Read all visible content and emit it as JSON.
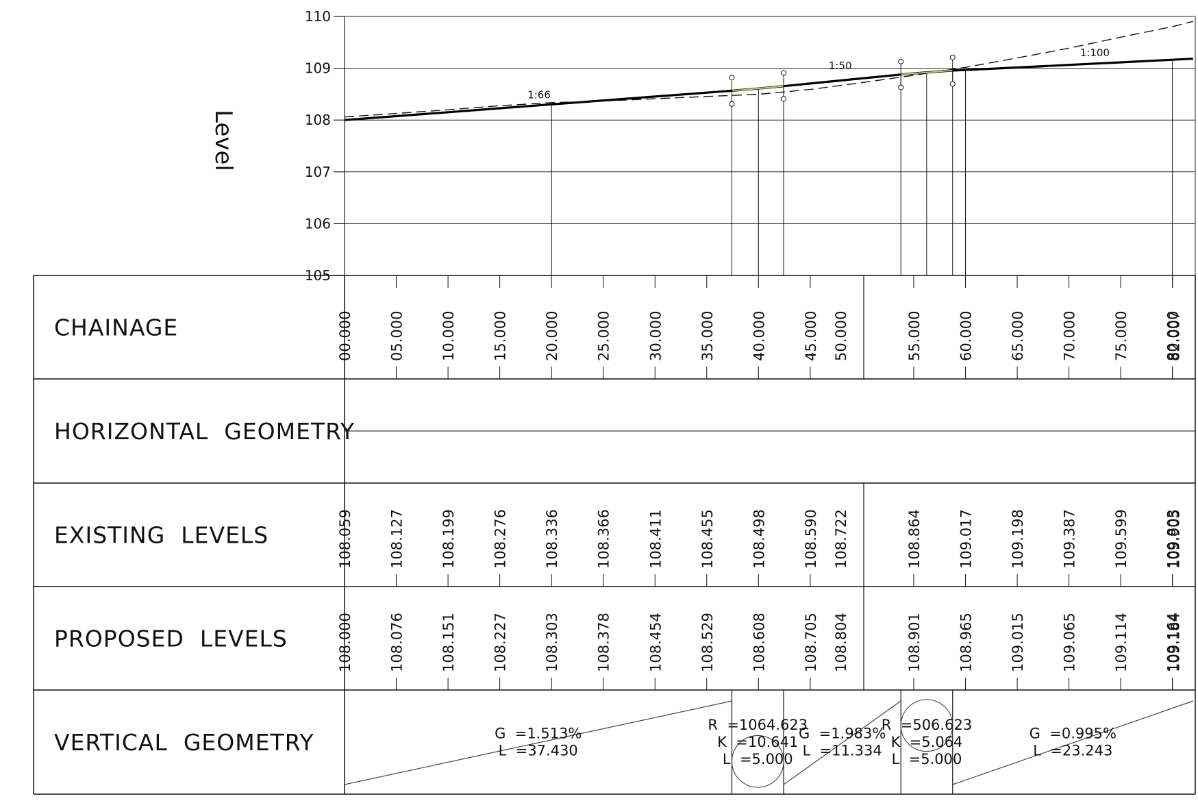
{
  "chart_data": {
    "type": "line",
    "ylabel": "Level",
    "ylim": [
      105,
      110
    ],
    "y_ticks": [
      "105",
      "106",
      "107",
      "108",
      "109",
      "110"
    ],
    "xlim": [
      0,
      80
    ],
    "grid": true,
    "series": [
      {
        "style": "solid-bold",
        "points": [
          [
            0,
            108.0
          ],
          [
            5,
            108.076
          ],
          [
            10,
            108.151
          ],
          [
            15,
            108.227
          ],
          [
            20,
            108.303
          ],
          [
            25,
            108.378
          ],
          [
            30,
            108.454
          ],
          [
            35,
            108.529
          ],
          [
            37.43,
            108.566
          ],
          [
            40,
            108.608
          ],
          [
            42.43,
            108.655
          ],
          [
            45,
            108.705
          ],
          [
            50,
            108.804
          ],
          [
            53.76,
            108.878
          ],
          [
            55,
            108.901
          ],
          [
            58.76,
            108.957
          ],
          [
            60,
            108.965
          ],
          [
            65,
            109.015
          ],
          [
            70,
            109.065
          ],
          [
            75,
            109.114
          ],
          [
            80,
            109.164
          ],
          [
            82,
            109.184
          ]
        ]
      },
      {
        "style": "dashed",
        "points": [
          [
            0,
            108.059
          ],
          [
            5,
            108.127
          ],
          [
            10,
            108.199
          ],
          [
            15,
            108.276
          ],
          [
            20,
            108.336
          ],
          [
            25,
            108.366
          ],
          [
            30,
            108.411
          ],
          [
            35,
            108.455
          ],
          [
            40,
            108.498
          ],
          [
            45,
            108.59
          ],
          [
            50,
            108.722
          ],
          [
            55,
            108.864
          ],
          [
            60,
            109.017
          ],
          [
            65,
            109.198
          ],
          [
            70,
            109.387
          ],
          [
            75,
            109.599
          ],
          [
            80,
            109.803
          ],
          [
            82,
            109.905
          ]
        ]
      }
    ],
    "curve_highlight": [
      {
        "x": [
          37.43,
          42.43
        ],
        "color": "#c8d86a"
      },
      {
        "x": [
          53.76,
          58.76
        ],
        "color": "#c8d86a"
      }
    ],
    "grade_labels": [
      {
        "text": "1:66",
        "x": 18.8,
        "y": 108.42
      },
      {
        "text": "1:50",
        "x": 47.9,
        "y": 108.98
      },
      {
        "text": "1:100",
        "x": 72.5,
        "y": 109.23
      }
    ],
    "ip_markers": [
      {
        "x": 37.43,
        "y_top": 108.82,
        "y_bottom": 108.31
      },
      {
        "x": 42.43,
        "y_top": 108.91,
        "y_bottom": 108.41
      },
      {
        "x": 53.76,
        "y_top": 109.13,
        "y_bottom": 108.63
      },
      {
        "x": 58.76,
        "y_top": 109.21,
        "y_bottom": 108.7
      }
    ],
    "profile_verticals": [
      20,
      37.43,
      40,
      42.43,
      53.76,
      56.25,
      58.76,
      60,
      80
    ]
  },
  "band": {
    "rows": [
      {
        "key": "chainage",
        "label": "CHAINAGE"
      },
      {
        "key": "horizontal",
        "label": "HORIZONTAL  GEOMETRY"
      },
      {
        "key": "existing",
        "label": "EXISTING  LEVELS"
      },
      {
        "key": "proposed",
        "label": "PROPOSED  LEVELS"
      },
      {
        "key": "vertical",
        "label": "VERTICAL  GEOMETRY"
      }
    ],
    "stations": [
      {
        "x": 0,
        "chainage": "00.000",
        "existing": "108.059",
        "proposed": "108.000"
      },
      {
        "x": 5,
        "chainage": "05.000",
        "existing": "108.127",
        "proposed": "108.076"
      },
      {
        "x": 10,
        "chainage": "10.000",
        "existing": "108.199",
        "proposed": "108.151"
      },
      {
        "x": 15,
        "chainage": "15.000",
        "existing": "108.276",
        "proposed": "108.227"
      },
      {
        "x": 20,
        "chainage": "20.000",
        "existing": "108.336",
        "proposed": "108.303"
      },
      {
        "x": 25,
        "chainage": "25.000",
        "existing": "108.366",
        "proposed": "108.378"
      },
      {
        "x": 30,
        "chainage": "30.000",
        "existing": "108.411",
        "proposed": "108.454"
      },
      {
        "x": 35,
        "chainage": "35.000",
        "existing": "108.455",
        "proposed": "108.529"
      },
      {
        "x": 40,
        "chainage": "40.000",
        "existing": "108.498",
        "proposed": "108.608"
      },
      {
        "x": 45,
        "chainage": "45.000",
        "existing": "108.590",
        "proposed": "108.705"
      },
      {
        "x": 48,
        "chainage": "50.000",
        "existing": "108.722",
        "proposed": "108.804"
      },
      {
        "x": 55,
        "chainage": "55.000",
        "existing": "108.864",
        "proposed": "108.901"
      },
      {
        "x": 60,
        "chainage": "60.000",
        "existing": "109.017",
        "proposed": "108.965"
      },
      {
        "x": 65,
        "chainage": "65.000",
        "existing": "109.198",
        "proposed": "109.015"
      },
      {
        "x": 70,
        "chainage": "70.000",
        "existing": "109.387",
        "proposed": "109.065"
      },
      {
        "x": 75,
        "chainage": "75.000",
        "existing": "109.599",
        "proposed": "109.114"
      },
      {
        "x": 80,
        "chainage": "80.000",
        "existing": "109.803",
        "proposed": "109.164"
      },
      {
        "x": 80,
        "chainage": "82.007",
        "existing": "109.905",
        "proposed": "109.184"
      }
    ],
    "chainage_break_x": 50,
    "vertical_geometry": [
      {
        "kind": "grade",
        "x1": 0,
        "x2": 37.43,
        "rise": "up",
        "lines": [
          "G  =1.513%",
          "L  =37.430"
        ]
      },
      {
        "kind": "curve",
        "x1": 37.43,
        "x2": 42.43,
        "lines": [
          "R  =1064.623",
          "K  =10.641",
          "L  =5.000"
        ]
      },
      {
        "kind": "grade",
        "x1": 42.43,
        "x2": 53.76,
        "rise": "up",
        "lines": [
          "G  =1.983%",
          "L  =11.334"
        ]
      },
      {
        "kind": "curve",
        "x1": 53.76,
        "x2": 58.76,
        "lines": [
          "R  =506.623",
          "K  =5.064",
          "L  =5.000"
        ]
      },
      {
        "kind": "grade",
        "x1": 58.76,
        "x2": 82.0,
        "rise": "up",
        "lines": [
          "G  =0.995%",
          "L  =23.243"
        ]
      }
    ]
  }
}
